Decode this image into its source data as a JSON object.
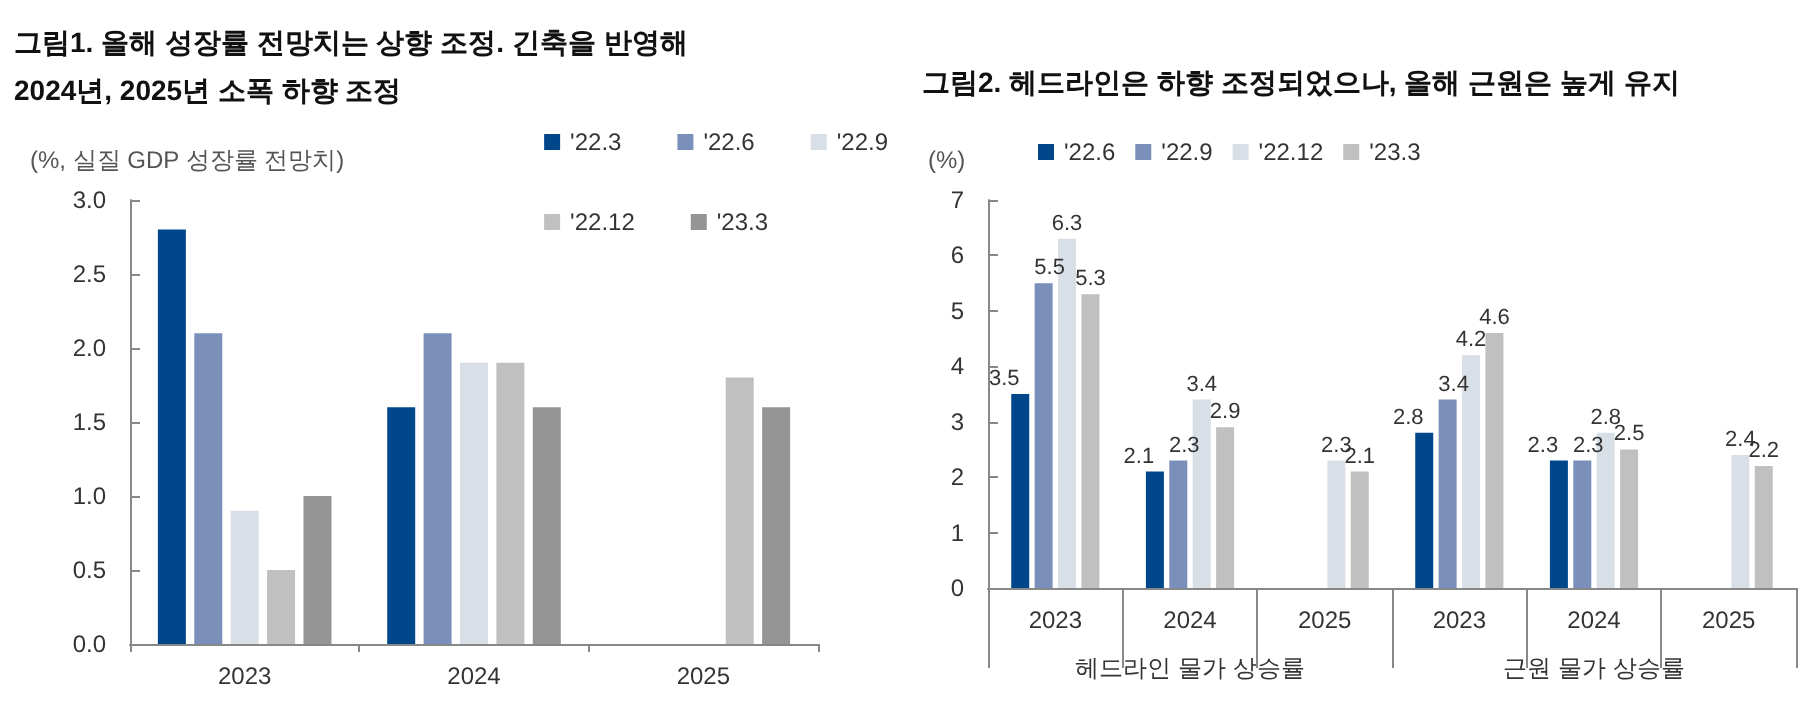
{
  "chart_data": [
    {
      "type": "bar",
      "title": "그림1. 올해 성장률 전망치는 상향 조정. 긴축을 반영해\n2024년, 2025년 소폭 하향 조정",
      "ylabel": "(%, 실질 GDP 성장률 전망치)",
      "categories": [
        "2023",
        "2024",
        "2025"
      ],
      "series": [
        {
          "name": "'22.3",
          "color": "#00468b",
          "values": [
            2.8,
            1.6,
            null
          ]
        },
        {
          "name": "'22.6",
          "color": "#7b8fbb",
          "values": [
            2.1,
            2.1,
            null
          ]
        },
        {
          "name": "'22.9",
          "color": "#d9dfe6",
          "values": [
            0.9,
            1.9,
            null
          ]
        },
        {
          "name": "'22.12",
          "color": "#c0c0c0",
          "values": [
            0.5,
            1.9,
            1.8
          ]
        },
        {
          "name": "'23.3",
          "color": "#959595",
          "values": [
            1.0,
            1.6,
            1.6
          ]
        }
      ],
      "ylim": [
        0,
        3
      ],
      "yticks": [
        {
          "value": 0,
          "label": "0.0"
        },
        {
          "value": 0.5,
          "label": "0.5"
        },
        {
          "value": 1,
          "label": "1.0"
        },
        {
          "value": 1.5,
          "label": "1.5"
        },
        {
          "value": 2,
          "label": "2.0"
        },
        {
          "value": 2.5,
          "label": "2.5"
        },
        {
          "value": 3,
          "label": "3.0"
        }
      ],
      "grid": false,
      "legend": "top right"
    },
    {
      "type": "bar",
      "title": "그림2. 헤드라인은 하향 조정되었으나, 올해 근원은 높게 유지",
      "ylabel": "(%)",
      "categories": [
        "2023",
        "2024",
        "2025",
        "2023",
        "2024",
        "2025"
      ],
      "series": [
        {
          "name": "'22.6",
          "color": "#00468b",
          "values": [
            3.5,
            2.1,
            null,
            2.8,
            2.3,
            null
          ]
        },
        {
          "name": "'22.9",
          "color": "#7b8fbb",
          "values": [
            5.5,
            2.3,
            null,
            3.4,
            2.3,
            null
          ]
        },
        {
          "name": "'22.12",
          "color": "#d9dfe6",
          "values": [
            6.3,
            3.4,
            2.3,
            4.2,
            2.8,
            2.4
          ]
        },
        {
          "name": "'23.3",
          "color": "#c0c0c0",
          "values": [
            5.3,
            2.9,
            2.1,
            4.6,
            2.5,
            2.2
          ]
        }
      ],
      "annotations": [
        "헤드라인 물가 상승률",
        "근원 물가 상승률"
      ],
      "ylim": [
        0,
        7
      ],
      "yticks": [
        0,
        1,
        2,
        3,
        4,
        5,
        6,
        7
      ],
      "grid": false,
      "legend": "top",
      "data_labels": true
    }
  ]
}
